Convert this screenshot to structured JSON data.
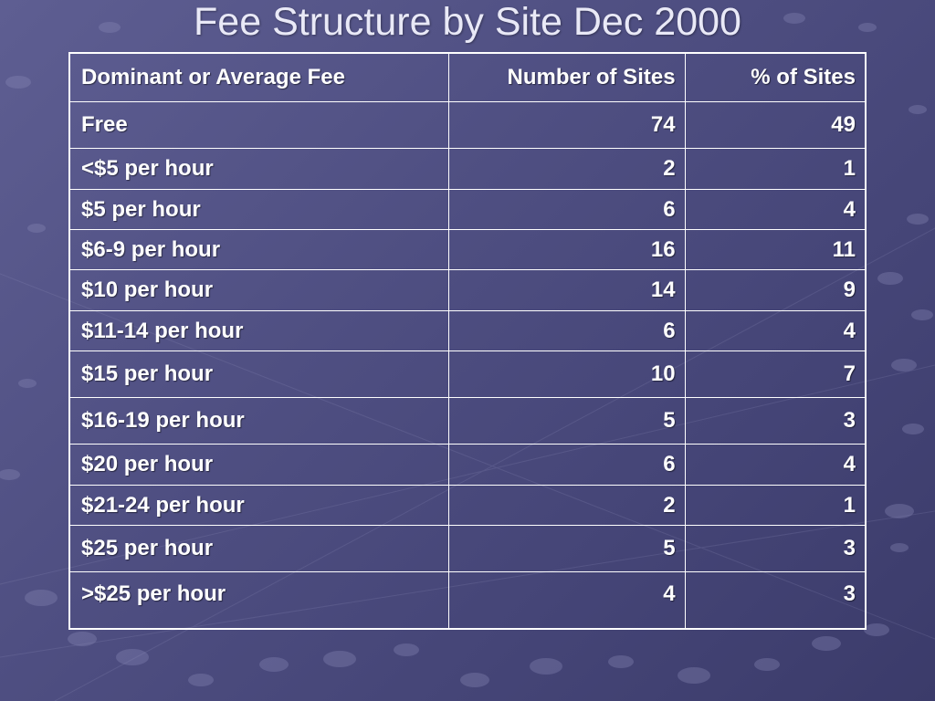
{
  "slide": {
    "title": "Fee Structure by Site Dec 2000"
  },
  "table": {
    "headers": {
      "fee": "Dominant or Average Fee",
      "number": "Number of Sites",
      "percent": "% of Sites"
    },
    "rows": [
      {
        "fee": "Free",
        "number": "74",
        "percent": "49"
      },
      {
        "fee": "<$5 per hour",
        "number": "2",
        "percent": "1"
      },
      {
        "fee": "$5 per hour",
        "number": "6",
        "percent": "4"
      },
      {
        "fee": "$6-9 per hour",
        "number": "16",
        "percent": "11"
      },
      {
        "fee": "$10 per hour",
        "number": "14",
        "percent": "9"
      },
      {
        "fee": "$11-14 per hour",
        "number": "6",
        "percent": "4"
      },
      {
        "fee": "$15 per hour",
        "number": "10",
        "percent": "7"
      },
      {
        "fee": "$16-19 per hour",
        "number": "5",
        "percent": "3"
      },
      {
        "fee": "$20 per hour",
        "number": "6",
        "percent": "4"
      },
      {
        "fee": "$21-24 per hour",
        "number": "2",
        "percent": "1"
      },
      {
        "fee": "$25 per hour",
        "number": "5",
        "percent": "3"
      },
      {
        "fee": ">$25 per hour",
        "number": "4",
        "percent": "3"
      }
    ]
  },
  "colors": {
    "background": "#4f4f82",
    "text": "#ffffff",
    "title": "#e9e9f7",
    "grid": "#ffffff"
  }
}
